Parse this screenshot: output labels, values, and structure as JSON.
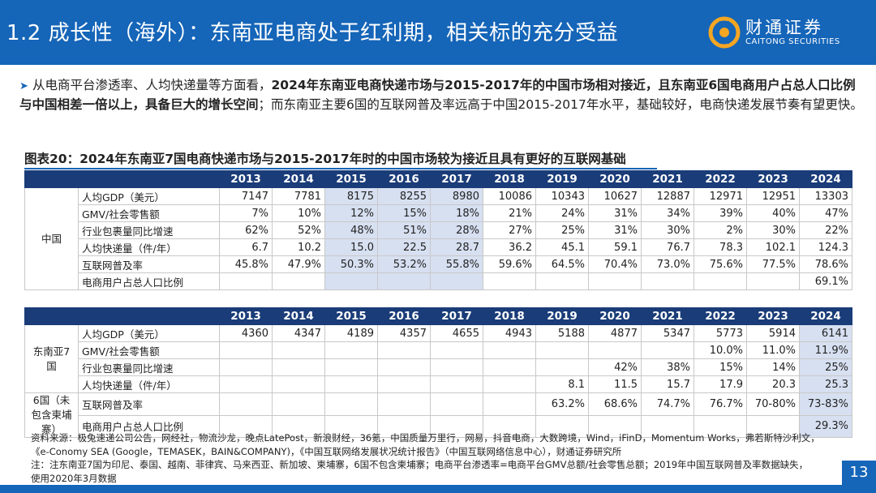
{
  "header": {
    "title": "1.2 成长性（海外）：东南亚电商处于红利期，相关标的充分受益"
  },
  "logo": {
    "cn": "财通证券",
    "en": "CAITONG SECURITIES"
  },
  "bullet": {
    "plain1": "从电商平台渗透率、人均快递量等方面看，",
    "bold": "2024年东南亚电商快递市场与2015-2017年的中国市场相对接近，且东南亚6国电商用户占总人口比例与中国相差一倍以上，具备巨大的增长空间",
    "plain2": "；而东南亚主要6国的互联网普及率远高于中国2015-2017年水平，基础较好，电商快递发展节奏有望更快。"
  },
  "figure": {
    "title": "图表20：2024年东南亚7国电商快递市场与2015-2017年时的中国市场较为接近且具有更好的互联网基础"
  },
  "years": [
    "2013",
    "2014",
    "2015",
    "2016",
    "2017",
    "2018",
    "2019",
    "2020",
    "2021",
    "2022",
    "2023",
    "2024"
  ],
  "china": {
    "group": "中国",
    "rows": [
      {
        "label": "人均GDP（美元）",
        "values": [
          "7147",
          "7781",
          "8175",
          "8255",
          "8980",
          "10086",
          "10343",
          "10627",
          "12887",
          "12971",
          "12951",
          "13303"
        ]
      },
      {
        "label": "GMV/社会零售额",
        "values": [
          "7%",
          "10%",
          "12%",
          "15%",
          "18%",
          "21%",
          "24%",
          "31%",
          "34%",
          "39%",
          "40%",
          "47%"
        ]
      },
      {
        "label": "行业包裹量同比增速",
        "values": [
          "62%",
          "52%",
          "48%",
          "51%",
          "28%",
          "27%",
          "25%",
          "31%",
          "30%",
          "2%",
          "30%",
          "22%"
        ]
      },
      {
        "label": "人均快递量（件/年）",
        "values": [
          "6.7",
          "10.2",
          "15.0",
          "22.5",
          "28.7",
          "36.2",
          "45.1",
          "59.1",
          "76.7",
          "78.3",
          "102.1",
          "124.3"
        ]
      },
      {
        "label": "互联网普及率",
        "values": [
          "45.8%",
          "47.9%",
          "50.3%",
          "53.2%",
          "55.8%",
          "59.6%",
          "64.5%",
          "70.4%",
          "73.0%",
          "75.6%",
          "77.5%",
          "78.6%"
        ]
      },
      {
        "label": "电商用户占总人口比例",
        "values": [
          "",
          "",
          "",
          "",
          "",
          "",
          "",
          "",
          "",
          "",
          "",
          "69.1%"
        ]
      }
    ]
  },
  "sea": {
    "group7": "东南亚7国",
    "group6": "6国（未包含柬埔寨）",
    "rows": [
      {
        "label": "人均GDP（美元）",
        "values": [
          "4360",
          "4347",
          "4189",
          "4357",
          "4655",
          "4943",
          "5188",
          "4877",
          "5347",
          "5773",
          "5914",
          "6141"
        ]
      },
      {
        "label": "GMV/社会零售额",
        "values": [
          "",
          "",
          "",
          "",
          "",
          "",
          "",
          "",
          "",
          "10.0%",
          "11.0%",
          "11.9%"
        ]
      },
      {
        "label": "行业包裹量同比增速",
        "values": [
          "",
          "",
          "",
          "",
          "",
          "",
          "",
          "42%",
          "38%",
          "15%",
          "14%",
          "25%"
        ]
      },
      {
        "label": "人均快递量（件/年）",
        "values": [
          "",
          "",
          "",
          "",
          "",
          "",
          "8.1",
          "11.5",
          "15.7",
          "17.9",
          "20.3",
          "25.3"
        ]
      },
      {
        "label": "互联网普及率",
        "values": [
          "",
          "",
          "",
          "",
          "",
          "",
          "63.2%",
          "68.6%",
          "74.7%",
          "76.7%",
          "70-80%",
          "73-83%"
        ]
      },
      {
        "label": "电商用户占总人口比例",
        "values": [
          "",
          "",
          "",
          "",
          "",
          "",
          "",
          "",
          "",
          "",
          "",
          "29.3%"
        ]
      }
    ]
  },
  "notes": {
    "line1": "资料来源：极兔速递公司公告，网经社，物流沙龙，晚点LatePost，新浪财经，36氪，中国质量万里行，网易，抖音电商，大数跨境，Wind，iFinD，Momentum Works，弗若斯特沙利文，",
    "line2": "《e-Conomy SEA (Google，TEMASEK，BAIN&COMPANY)，《中国互联网络发展状况统计报告》（中国互联网络信息中心），财通证券研究所",
    "line3": "注：注东南亚7国为印尼、泰国、越南、菲律宾、马来西亚、新加坡、柬埔寨，6国不包含柬埔寨；电商平台渗透率=电商平台GMV总额/社会零售总额；2019年中国互联网普及率数据缺失，",
    "line4": "使用2020年3月数据"
  },
  "page": {
    "number": "13"
  },
  "colors": {
    "primary": "#1565b8",
    "table_header": "#1a3c78",
    "highlight": "#d7e0f1"
  }
}
